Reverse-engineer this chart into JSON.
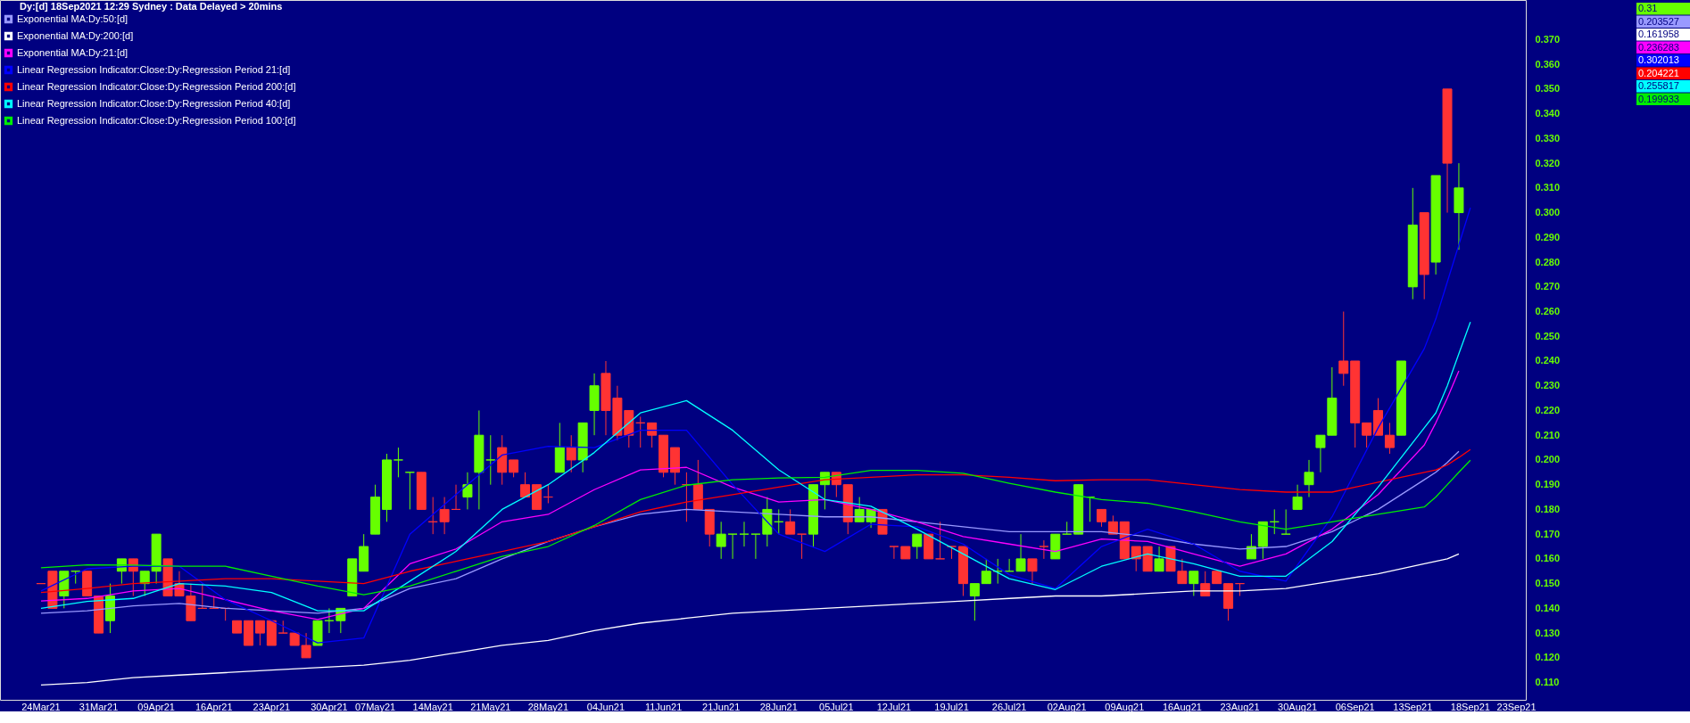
{
  "chart_data": {
    "type": "candlestick",
    "title": "Dy:[d] 18Sep2021 12:29 Sydney : Data Delayed > 20mins",
    "categories": [
      "24Mar21",
      null,
      null,
      null,
      null,
      "31Mar21",
      null,
      null,
      null,
      null,
      "09Apr21",
      null,
      null,
      null,
      null,
      "16Apr21",
      null,
      null,
      null,
      null,
      "23Apr21",
      null,
      null,
      null,
      null,
      "30Apr21",
      null,
      null,
      null,
      "07May21",
      null,
      null,
      null,
      null,
      "14May21",
      null,
      null,
      null,
      null,
      "21May21",
      null,
      null,
      null,
      null,
      "28May21",
      null,
      null,
      null,
      null,
      "04Jun21",
      null,
      null,
      null,
      null,
      "11Jun21",
      null,
      null,
      null,
      null,
      "21Jun21",
      null,
      null,
      null,
      null,
      "28Jun21",
      null,
      null,
      null,
      null,
      "05Jul21",
      null,
      null,
      null,
      null,
      "12Jul21",
      null,
      null,
      null,
      null,
      "19Jul21",
      null,
      null,
      null,
      null,
      "26Jul21",
      null,
      null,
      null,
      null,
      "02Aug21",
      null,
      null,
      null,
      null,
      "09Aug21",
      null,
      null,
      null,
      null,
      "16Aug21",
      null,
      null,
      null,
      null,
      "23Aug21",
      null,
      null,
      null,
      null,
      "30Aug21",
      null,
      null,
      null,
      null,
      "06Sep21",
      null,
      null,
      null,
      null,
      "13Sep21",
      null,
      null,
      null,
      null,
      "18Sep21",
      null,
      null,
      null,
      "23Sep21"
    ],
    "ohlc": [
      [
        0.15,
        0.15,
        0.15,
        0.15
      ],
      [
        0.155,
        0.155,
        0.14,
        0.14
      ],
      [
        0.145,
        0.155,
        0.14,
        0.155
      ],
      [
        0.155,
        0.155,
        0.15,
        0.155
      ],
      [
        0.155,
        0.155,
        0.145,
        0.145
      ],
      [
        0.145,
        0.145,
        0.13,
        0.13
      ],
      [
        0.135,
        0.15,
        0.13,
        0.145
      ],
      [
        0.155,
        0.16,
        0.15,
        0.16
      ],
      [
        0.16,
        0.16,
        0.145,
        0.155
      ],
      [
        0.15,
        0.155,
        0.145,
        0.155
      ],
      [
        0.155,
        0.17,
        0.15,
        0.17
      ],
      [
        0.16,
        0.16,
        0.145,
        0.145
      ],
      [
        0.15,
        0.155,
        0.145,
        0.145
      ],
      [
        0.145,
        0.15,
        0.135,
        0.135
      ],
      [
        0.14,
        0.15,
        0.14,
        0.14
      ],
      [
        0.14,
        0.145,
        0.14,
        0.14
      ],
      [
        0.14,
        0.14,
        0.135,
        0.14
      ],
      [
        0.135,
        0.135,
        0.13,
        0.13
      ],
      [
        0.135,
        0.135,
        0.125,
        0.125
      ],
      [
        0.135,
        0.135,
        0.125,
        0.13
      ],
      [
        0.135,
        0.135,
        0.125,
        0.125
      ],
      [
        0.13,
        0.135,
        0.13,
        0.13
      ],
      [
        0.13,
        0.13,
        0.125,
        0.125
      ],
      [
        0.125,
        0.13,
        0.12,
        0.12
      ],
      [
        0.125,
        0.135,
        0.125,
        0.135
      ],
      [
        0.135,
        0.14,
        0.13,
        0.135
      ],
      [
        0.135,
        0.14,
        0.13,
        0.14
      ],
      [
        0.145,
        0.16,
        0.145,
        0.16
      ],
      [
        0.155,
        0.17,
        0.155,
        0.165
      ],
      [
        0.17,
        0.19,
        0.17,
        0.185
      ],
      [
        0.18,
        0.2025,
        0.175,
        0.2
      ],
      [
        0.2,
        0.205,
        0.193,
        0.2
      ],
      [
        0.195,
        0.195,
        0.18,
        0.195
      ],
      [
        0.195,
        0.195,
        0.18,
        0.18
      ],
      [
        0.175,
        0.185,
        0.17,
        0.175
      ],
      [
        0.18,
        0.185,
        0.17,
        0.175
      ],
      [
        0.18,
        0.19,
        0.18,
        0.18
      ],
      [
        0.185,
        0.195,
        0.18,
        0.19
      ],
      [
        0.195,
        0.22,
        0.18,
        0.21
      ],
      [
        0.2,
        0.21,
        0.19,
        0.2
      ],
      [
        0.205,
        0.21,
        0.19,
        0.195
      ],
      [
        0.2,
        0.2,
        0.193,
        0.195
      ],
      [
        0.19,
        0.195,
        0.185,
        0.185
      ],
      [
        0.19,
        0.19,
        0.18,
        0.18
      ],
      [
        0.185,
        0.19,
        0.1825,
        0.185
      ],
      [
        0.195,
        0.215,
        0.195,
        0.205
      ],
      [
        0.205,
        0.21,
        0.195,
        0.2
      ],
      [
        0.2,
        0.215,
        0.195,
        0.215
      ],
      [
        0.22,
        0.235,
        0.21,
        0.23
      ],
      [
        0.235,
        0.24,
        0.21,
        0.22
      ],
      [
        0.225,
        0.23,
        0.208,
        0.21
      ],
      [
        0.22,
        0.22,
        0.205,
        0.21
      ],
      [
        0.215,
        0.2175,
        0.205,
        0.215
      ],
      [
        0.215,
        0.215,
        0.205,
        0.21
      ],
      [
        0.21,
        0.21,
        0.193,
        0.195
      ],
      [
        0.205,
        0.205,
        0.19,
        0.195
      ],
      [
        0.19,
        0.195,
        0.175,
        0.19
      ],
      [
        0.19,
        0.2,
        0.18,
        0.18
      ],
      [
        0.18,
        0.18,
        0.165,
        0.17
      ],
      [
        0.165,
        0.175,
        0.16,
        0.17
      ],
      [
        0.17,
        0.17,
        0.16,
        0.17
      ],
      [
        0.17,
        0.175,
        0.165,
        0.17
      ],
      [
        0.17,
        0.17,
        0.16,
        0.17
      ],
      [
        0.17,
        0.185,
        0.165,
        0.18
      ],
      [
        0.175,
        0.18,
        0.17,
        0.175
      ],
      [
        0.175,
        0.18,
        0.17,
        0.17
      ],
      [
        0.17,
        0.17,
        0.16,
        0.17
      ],
      [
        0.17,
        0.19,
        0.165,
        0.19
      ],
      [
        0.19,
        0.195,
        0.18,
        0.195
      ],
      [
        0.195,
        0.195,
        0.185,
        0.19
      ],
      [
        0.19,
        0.19,
        0.17,
        0.175
      ],
      [
        0.175,
        0.185,
        0.175,
        0.18
      ],
      [
        0.175,
        0.18,
        0.1725,
        0.18
      ],
      [
        0.18,
        0.18,
        0.17,
        0.17
      ],
      [
        0.165,
        0.165,
        0.16,
        0.165
      ],
      [
        0.165,
        0.165,
        0.16,
        0.16
      ],
      [
        0.165,
        0.17,
        0.16,
        0.17
      ],
      [
        0.17,
        0.17,
        0.16,
        0.16
      ],
      [
        0.16,
        0.175,
        0.16,
        0.16
      ],
      [
        0.165,
        0.165,
        0.16,
        0.165
      ],
      [
        0.165,
        0.165,
        0.145,
        0.15
      ],
      [
        0.145,
        0.15,
        0.135,
        0.15
      ],
      [
        0.15,
        0.16,
        0.15,
        0.155
      ],
      [
        0.155,
        0.16,
        0.15,
        0.155
      ],
      [
        0.155,
        0.16,
        0.155,
        0.155
      ],
      [
        0.155,
        0.17,
        0.155,
        0.16
      ],
      [
        0.16,
        0.16,
        0.15,
        0.155
      ],
      [
        0.165,
        0.1675,
        0.16,
        0.165
      ],
      [
        0.16,
        0.17,
        0.16,
        0.17
      ],
      [
        0.17,
        0.175,
        0.17,
        0.17
      ],
      [
        0.17,
        0.19,
        0.17,
        0.19
      ],
      [
        0.185,
        0.185,
        0.175,
        0.185
      ],
      [
        0.18,
        0.18,
        0.173,
        0.175
      ],
      [
        0.175,
        0.1775,
        0.17,
        0.17
      ],
      [
        0.175,
        0.175,
        0.16,
        0.16
      ],
      [
        0.165,
        0.165,
        0.155,
        0.16
      ],
      [
        0.165,
        0.165,
        0.155,
        0.155
      ],
      [
        0.155,
        0.165,
        0.155,
        0.16
      ],
      [
        0.165,
        0.165,
        0.155,
        0.155
      ],
      [
        0.155,
        0.16,
        0.15,
        0.15
      ],
      [
        0.15,
        0.155,
        0.145,
        0.155
      ],
      [
        0.15,
        0.155,
        0.145,
        0.145
      ],
      [
        0.155,
        0.155,
        0.15,
        0.15
      ],
      [
        0.15,
        0.15,
        0.135,
        0.14
      ],
      [
        0.15,
        0.15,
        0.145,
        0.15
      ],
      [
        0.16,
        0.17,
        0.16,
        0.165
      ],
      [
        0.165,
        0.175,
        0.16,
        0.175
      ],
      [
        0.175,
        0.18,
        0.17,
        0.175
      ],
      [
        0.17,
        0.18,
        0.17,
        0.17
      ],
      [
        0.18,
        0.19,
        0.18,
        0.185
      ],
      [
        0.19,
        0.2,
        0.185,
        0.195
      ],
      [
        0.205,
        0.21,
        0.195,
        0.21
      ],
      [
        0.21,
        0.2375,
        0.21,
        0.225
      ],
      [
        0.24,
        0.26,
        0.23,
        0.235
      ],
      [
        0.24,
        0.24,
        0.205,
        0.215
      ],
      [
        0.215,
        0.215,
        0.205,
        0.21
      ],
      [
        0.22,
        0.225,
        0.21,
        0.21
      ],
      [
        0.21,
        0.215,
        0.2025,
        0.205
      ],
      [
        0.21,
        0.24,
        0.21,
        0.24
      ],
      [
        0.27,
        0.31,
        0.265,
        0.295
      ],
      [
        0.3,
        0.3,
        0.265,
        0.275
      ],
      [
        0.28,
        0.315,
        0.275,
        0.315
      ],
      [
        0.35,
        0.35,
        0.3,
        0.32
      ],
      [
        0.3,
        0.32,
        0.285,
        0.31
      ],
      null,
      null,
      null,
      null,
      null
    ],
    "colors": [
      "#ff3333",
      "#ff3333",
      "#66ff00",
      "#66ff00",
      "#ff3333",
      "#ff3333",
      "#66ff00",
      "#66ff00",
      "#ff3333",
      "#66ff00",
      "#66ff00",
      "#ff3333",
      "#ff3333",
      "#ff3333",
      "#ff3333",
      "#ff3333",
      "#ff3333",
      "#ff3333",
      "#ff3333",
      "#ff3333",
      "#ff3333",
      "#ff3333",
      "#ff3333",
      "#ff3333",
      "#66ff00",
      "#66ff00",
      "#66ff00",
      "#66ff00",
      "#66ff00",
      "#66ff00",
      "#66ff00",
      "#66ff00",
      "#66ff00",
      "#ff3333",
      "#ff3333",
      "#ff3333",
      "#ff3333",
      "#66ff00",
      "#66ff00",
      "#66ff00",
      "#ff3333",
      "#ff3333",
      "#ff3333",
      "#ff3333",
      "#ff3333",
      "#66ff00",
      "#ff3333",
      "#66ff00",
      "#66ff00",
      "#ff3333",
      "#ff3333",
      "#ff3333",
      "#ff3333",
      "#ff3333",
      "#ff3333",
      "#ff3333",
      "#ff3333",
      "#ff3333",
      "#ff3333",
      "#66ff00",
      "#66ff00",
      "#66ff00",
      "#66ff00",
      "#66ff00",
      "#66ff00",
      "#ff3333",
      "#ff3333",
      "#66ff00",
      "#66ff00",
      "#ff3333",
      "#ff3333",
      "#66ff00",
      "#66ff00",
      "#ff3333",
      "#ff3333",
      "#ff3333",
      "#66ff00",
      "#ff3333",
      "#ff3333",
      "#ff3333",
      "#ff3333",
      "#66ff00",
      "#66ff00",
      "#66ff00",
      "#66ff00",
      "#66ff00",
      "#ff3333",
      "#ff3333",
      "#66ff00",
      "#66ff00",
      "#66ff00",
      "#66ff00",
      "#ff3333",
      "#ff3333",
      "#ff3333",
      "#ff3333",
      "#ff3333",
      "#66ff00",
      "#ff3333",
      "#ff3333",
      "#66ff00",
      "#ff3333",
      "#ff3333",
      "#ff3333",
      "#ff3333",
      "#66ff00",
      "#66ff00",
      "#66ff00",
      "#66ff00",
      "#66ff00",
      "#66ff00",
      "#66ff00",
      "#66ff00",
      "#ff3333",
      "#ff3333",
      "#ff3333",
      "#ff3333",
      "#ff3333",
      "#66ff00",
      "#66ff00",
      "#ff3333",
      "#66ff00",
      "#ff3333",
      "#66ff00",
      null,
      null,
      null,
      null,
      null
    ],
    "series": [
      {
        "name": "Exponential MA:Dy:50:[d]",
        "color": "#9999ff",
        "type": "line",
        "values": [
          0.138,
          null,
          null,
          null,
          0.139,
          null,
          null,
          null,
          0.141,
          null,
          null,
          null,
          0.142,
          null,
          null,
          null,
          0.14,
          null,
          null,
          null,
          0.139,
          null,
          null,
          null,
          0.138,
          null,
          null,
          null,
          0.14,
          null,
          null,
          null,
          0.148,
          null,
          null,
          null,
          0.152,
          null,
          null,
          null,
          0.16,
          null,
          null,
          null,
          0.167,
          null,
          null,
          null,
          0.173,
          null,
          null,
          null,
          0.178,
          null,
          null,
          null,
          0.18,
          null,
          null,
          null,
          0.179,
          null,
          null,
          null,
          0.178,
          null,
          null,
          null,
          0.177,
          null,
          null,
          null,
          0.177,
          null,
          null,
          null,
          0.175,
          null,
          null,
          null,
          0.173,
          null,
          null,
          null,
          0.171,
          null,
          null,
          null,
          0.171,
          null,
          null,
          null,
          0.171,
          null,
          null,
          null,
          0.169,
          null,
          null,
          null,
          0.166,
          null,
          null,
          null,
          0.164,
          null,
          null,
          null,
          0.165,
          null,
          null,
          null,
          0.171,
          null,
          null,
          null,
          0.18,
          null,
          null,
          null,
          0.192,
          0.195,
          0.199,
          0.2035,
          null,
          null,
          null,
          null,
          null
        ]
      },
      {
        "name": "Exponential MA:Dy:200:[d]",
        "color": "#ffffff",
        "type": "line",
        "values": [
          0.109,
          null,
          null,
          null,
          0.11,
          null,
          null,
          null,
          0.112,
          null,
          null,
          null,
          0.113,
          null,
          null,
          null,
          0.114,
          null,
          null,
          null,
          0.115,
          null,
          null,
          null,
          0.116,
          null,
          null,
          null,
          0.117,
          null,
          null,
          null,
          0.119,
          null,
          null,
          null,
          0.122,
          null,
          null,
          null,
          0.125,
          null,
          null,
          null,
          0.127,
          null,
          null,
          null,
          0.131,
          null,
          null,
          null,
          0.134,
          null,
          null,
          null,
          0.136,
          null,
          null,
          null,
          0.138,
          null,
          null,
          null,
          0.139,
          null,
          null,
          null,
          0.14,
          null,
          null,
          null,
          0.141,
          null,
          null,
          null,
          0.142,
          null,
          null,
          null,
          0.143,
          null,
          null,
          null,
          0.144,
          null,
          null,
          null,
          0.145,
          null,
          null,
          null,
          0.145,
          null,
          null,
          null,
          0.146,
          null,
          null,
          null,
          0.147,
          null,
          null,
          null,
          0.147,
          null,
          null,
          null,
          0.148,
          null,
          null,
          null,
          0.151,
          null,
          null,
          null,
          0.154,
          null,
          null,
          null,
          0.158,
          0.159,
          0.16,
          0.162,
          null,
          null,
          null,
          null,
          null
        ]
      },
      {
        "name": "Exponential MA:Dy:21:[d]",
        "color": "#ff00ff",
        "type": "line",
        "values": [
          0.143,
          null,
          null,
          null,
          0.144,
          null,
          null,
          null,
          0.147,
          null,
          null,
          null,
          0.148,
          null,
          null,
          null,
          0.1435,
          null,
          null,
          null,
          0.139,
          null,
          null,
          null,
          0.1355,
          null,
          null,
          null,
          0.14,
          null,
          null,
          null,
          0.158,
          null,
          null,
          null,
          0.164,
          null,
          null,
          null,
          0.175,
          null,
          null,
          null,
          0.178,
          null,
          null,
          null,
          0.188,
          null,
          null,
          null,
          0.196,
          null,
          null,
          null,
          0.197,
          null,
          null,
          null,
          0.189,
          null,
          null,
          null,
          0.183,
          null,
          null,
          null,
          0.184,
          null,
          null,
          null,
          0.18,
          null,
          null,
          null,
          0.175,
          null,
          null,
          null,
          0.169,
          null,
          null,
          null,
          0.166,
          null,
          null,
          null,
          0.163,
          null,
          null,
          null,
          0.168,
          null,
          null,
          null,
          0.167,
          null,
          null,
          null,
          0.162,
          null,
          null,
          null,
          0.157,
          null,
          null,
          null,
          0.162,
          null,
          null,
          null,
          0.172,
          null,
          null,
          null,
          0.186,
          null,
          null,
          null,
          0.206,
          0.215,
          0.225,
          0.236,
          null,
          null,
          null,
          null,
          null
        ]
      },
      {
        "name": "Linear Regression Indicator:Close:Dy:Regression Period 21:[d]",
        "color": "#0000ff",
        "type": "line",
        "values": [
          0.147,
          null,
          null,
          null,
          0.156,
          null,
          null,
          null,
          0.157,
          null,
          null,
          null,
          0.157,
          null,
          null,
          null,
          0.1435,
          null,
          null,
          null,
          0.135,
          null,
          null,
          null,
          0.126,
          null,
          null,
          null,
          0.128,
          null,
          null,
          null,
          0.17,
          null,
          null,
          null,
          0.186,
          null,
          null,
          null,
          0.202,
          null,
          null,
          null,
          0.2055,
          null,
          null,
          null,
          0.205,
          null,
          null,
          null,
          0.212,
          null,
          null,
          null,
          0.212,
          null,
          null,
          null,
          0.19,
          null,
          null,
          null,
          0.17,
          null,
          null,
          null,
          0.163,
          null,
          null,
          null,
          0.174,
          null,
          null,
          null,
          0.173,
          null,
          null,
          null,
          0.166,
          null,
          null,
          null,
          0.1536,
          null,
          null,
          null,
          0.148,
          null,
          null,
          null,
          0.165,
          null,
          null,
          null,
          0.172,
          null,
          null,
          null,
          0.166,
          null,
          null,
          null,
          0.155,
          null,
          null,
          null,
          0.151,
          null,
          null,
          null,
          0.177,
          null,
          null,
          null,
          0.213,
          null,
          null,
          null,
          0.245,
          0.257,
          0.272,
          0.287,
          0.302,
          null,
          null,
          null,
          null
        ]
      },
      {
        "name": "Linear Regression Indicator:Close:Dy:Regression Period 200:[d]",
        "color": "#ff0000",
        "type": "line",
        "values": [
          0.1464,
          null,
          null,
          null,
          0.148,
          null,
          null,
          null,
          0.15,
          null,
          null,
          null,
          0.151,
          null,
          null,
          null,
          0.152,
          null,
          null,
          null,
          0.152,
          null,
          null,
          null,
          0.151,
          null,
          null,
          null,
          0.15,
          null,
          null,
          null,
          0.155,
          null,
          null,
          null,
          0.159,
          null,
          null,
          null,
          0.163,
          null,
          null,
          null,
          0.167,
          null,
          null,
          null,
          0.173,
          null,
          null,
          null,
          0.179,
          null,
          null,
          null,
          0.183,
          null,
          null,
          null,
          0.186,
          null,
          null,
          null,
          0.189,
          null,
          null,
          null,
          0.192,
          null,
          null,
          null,
          0.193,
          null,
          null,
          null,
          0.194,
          null,
          null,
          null,
          0.194,
          null,
          null,
          null,
          0.193,
          null,
          null,
          null,
          0.1916,
          null,
          null,
          null,
          0.192,
          null,
          null,
          null,
          0.192,
          null,
          null,
          null,
          0.19,
          null,
          null,
          null,
          0.188,
          null,
          null,
          null,
          0.187,
          null,
          null,
          null,
          0.187,
          null,
          null,
          null,
          0.191,
          null,
          null,
          null,
          0.195,
          0.196,
          0.198,
          0.201,
          0.2042,
          null,
          null,
          null,
          null
        ]
      },
      {
        "name": "Linear Regression Indicator:Close:Dy:Regression Period 40:[d]",
        "color": "#00ffff",
        "type": "line",
        "values": [
          0.14,
          null,
          null,
          null,
          0.1428,
          null,
          null,
          null,
          0.144,
          null,
          null,
          null,
          0.15,
          null,
          null,
          null,
          0.149,
          null,
          null,
          null,
          0.1464,
          null,
          null,
          null,
          0.139,
          null,
          null,
          null,
          0.139,
          null,
          null,
          null,
          0.151,
          null,
          null,
          null,
          0.163,
          null,
          null,
          null,
          0.18,
          null,
          null,
          null,
          0.19,
          null,
          null,
          null,
          0.203,
          null,
          null,
          null,
          0.219,
          null,
          null,
          null,
          0.224,
          null,
          null,
          null,
          0.212,
          null,
          null,
          null,
          0.196,
          null,
          null,
          null,
          0.184,
          null,
          null,
          null,
          0.1813,
          null,
          null,
          null,
          0.172,
          null,
          null,
          null,
          0.162,
          null,
          null,
          null,
          0.152,
          null,
          null,
          null,
          0.1476,
          null,
          null,
          null,
          0.157,
          null,
          null,
          null,
          0.162,
          null,
          null,
          null,
          0.158,
          null,
          null,
          null,
          0.153,
          null,
          null,
          null,
          0.153,
          null,
          null,
          null,
          0.167,
          null,
          null,
          null,
          0.189,
          null,
          null,
          null,
          0.213,
          0.219,
          0.23,
          0.243,
          0.2558,
          null,
          null,
          null,
          null
        ]
      },
      {
        "name": "Linear Regression Indicator:Close:Dy:Regression Period 100:[d]",
        "color": "#00ee00",
        "type": "line",
        "values": [
          0.1564,
          null,
          null,
          null,
          0.1576,
          null,
          null,
          null,
          0.1575,
          null,
          null,
          null,
          0.157,
          null,
          null,
          null,
          0.157,
          null,
          null,
          null,
          0.153,
          null,
          null,
          null,
          0.149,
          null,
          null,
          null,
          0.1455,
          null,
          null,
          null,
          0.149,
          null,
          null,
          null,
          0.155,
          null,
          null,
          null,
          0.161,
          null,
          null,
          null,
          0.165,
          null,
          null,
          null,
          0.1735,
          null,
          null,
          null,
          0.184,
          null,
          null,
          null,
          0.1898,
          null,
          null,
          null,
          0.192,
          null,
          null,
          null,
          0.1927,
          null,
          null,
          null,
          0.193,
          null,
          null,
          null,
          0.1958,
          null,
          null,
          null,
          0.1958,
          null,
          null,
          null,
          0.1946,
          null,
          null,
          null,
          0.1906,
          null,
          null,
          null,
          0.187,
          null,
          null,
          null,
          0.184,
          null,
          null,
          null,
          0.1825,
          null,
          null,
          null,
          0.179,
          null,
          null,
          null,
          0.175,
          null,
          null,
          null,
          0.172,
          null,
          null,
          null,
          0.175,
          null,
          null,
          null,
          0.178,
          null,
          null,
          null,
          0.181,
          0.185,
          0.19,
          0.195,
          0.1999,
          null,
          null,
          null,
          null
        ]
      }
    ],
    "ylim": [
      0.103,
      0.386
    ],
    "yticks": [
      {
        "value": 0.11,
        "label": "0.110"
      },
      {
        "value": 0.12,
        "label": "0.120"
      },
      {
        "value": 0.13,
        "label": "0.130"
      },
      {
        "value": 0.14,
        "label": "0.140"
      },
      {
        "value": 0.15,
        "label": "0.150"
      },
      {
        "value": 0.16,
        "label": "0.160"
      },
      {
        "value": 0.17,
        "label": "0.170"
      },
      {
        "value": 0.18,
        "label": "0.180"
      },
      {
        "value": 0.19,
        "label": "0.190"
      },
      {
        "value": 0.2,
        "label": "0.200"
      },
      {
        "value": 0.21,
        "label": "0.210"
      },
      {
        "value": 0.22,
        "label": "0.220"
      },
      {
        "value": 0.23,
        "label": "0.230"
      },
      {
        "value": 0.24,
        "label": "0.240"
      },
      {
        "value": 0.25,
        "label": "0.250"
      },
      {
        "value": 0.26,
        "label": "0.260"
      },
      {
        "value": 0.27,
        "label": "0.270"
      },
      {
        "value": 0.28,
        "label": "0.280"
      },
      {
        "value": 0.29,
        "label": "0.290"
      },
      {
        "value": 0.3,
        "label": "0.300"
      },
      {
        "value": 0.31,
        "label": "0.310"
      },
      {
        "value": 0.32,
        "label": "0.320"
      },
      {
        "value": 0.33,
        "label": "0.330"
      },
      {
        "value": 0.34,
        "label": "0.340"
      },
      {
        "value": 0.35,
        "label": "0.350"
      },
      {
        "value": 0.36,
        "label": "0.360"
      },
      {
        "value": 0.37,
        "label": "0.370"
      }
    ],
    "annotations": [
      "0.31",
      "0.203527",
      "0.161958",
      "0.236283",
      "0.302013",
      "0.204221",
      "0.255817",
      "0.199933"
    ],
    "legend": "top left",
    "grid": false
  }
}
